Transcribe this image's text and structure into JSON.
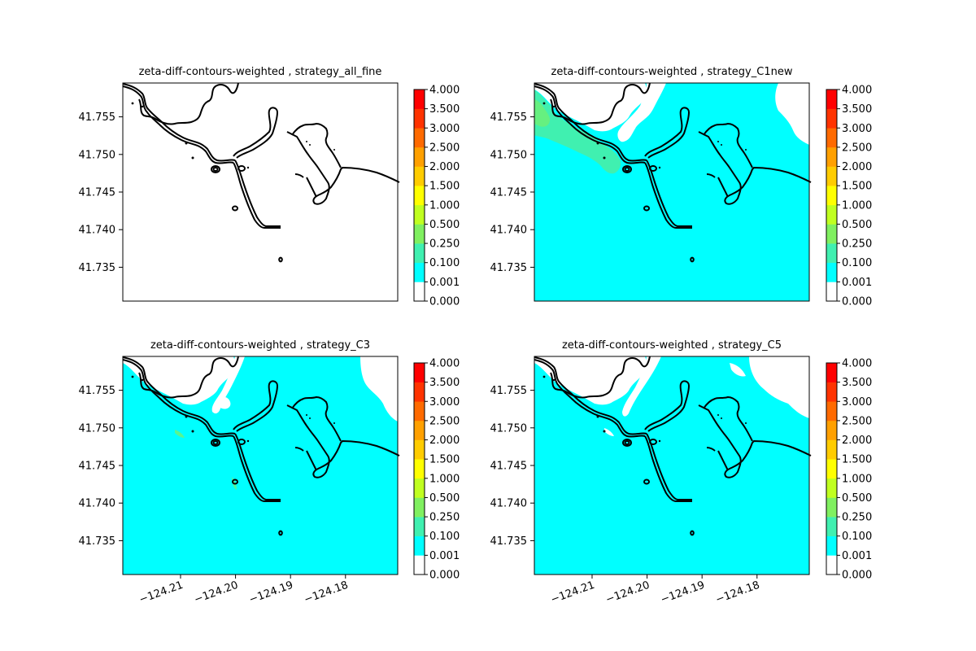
{
  "figure": {
    "colorbar": {
      "levels": [
        0.0,
        0.001,
        0.1,
        0.25,
        0.5,
        1.0,
        1.5,
        2.0,
        2.5,
        3.0,
        3.5,
        4.0
      ],
      "level_labels": [
        "0.000",
        "0.001",
        "0.100",
        "0.250",
        "0.500",
        "1.000",
        "1.500",
        "2.000",
        "2.500",
        "3.000",
        "3.500",
        "4.000"
      ],
      "colors": [
        "#ffffff",
        "#00ffff",
        "#40f0b0",
        "#80f060",
        "#c0ff20",
        "#ffff00",
        "#ffcc00",
        "#ffa000",
        "#ff6a00",
        "#ff3300",
        "#ff0000"
      ]
    },
    "coastline_color": "#000000"
  },
  "chart_data": [
    {
      "type": "heatmap",
      "title": "zeta-diff-contours-weighted , strategy_all_fine",
      "xlabel": "",
      "ylabel": "",
      "xlim": [
        -124.2205,
        -124.1705
      ],
      "ylim": [
        41.7305,
        41.7595
      ],
      "x_ticks": [],
      "x_tick_labels": [],
      "y_ticks": [
        41.735,
        41.74,
        41.745,
        41.75,
        41.755
      ],
      "y_tick_labels": [
        "41.735",
        "41.740",
        "41.745",
        "41.750",
        "41.755"
      ],
      "fill": "none",
      "colorbar_range": [
        0.0,
        4.0
      ]
    },
    {
      "type": "heatmap",
      "title": "zeta-diff-contours-weighted , strategy_C1new",
      "xlabel": "",
      "ylabel": "",
      "xlim": [
        -124.2205,
        -124.1705
      ],
      "ylim": [
        41.7305,
        41.7595
      ],
      "x_ticks": [],
      "x_tick_labels": [],
      "y_ticks": [
        41.735,
        41.74,
        41.745,
        41.75,
        41.755
      ],
      "y_tick_labels": [
        "41.735",
        "41.740",
        "41.745",
        "41.750",
        "41.755"
      ],
      "fill": "mostly 0.001-0.100 with 0.100-0.250 near coast",
      "colorbar_range": [
        0.0,
        4.0
      ]
    },
    {
      "type": "heatmap",
      "title": "zeta-diff-contours-weighted , strategy_C3",
      "xlabel": "",
      "ylabel": "",
      "xlim": [
        -124.2205,
        -124.1705
      ],
      "ylim": [
        41.7305,
        41.7595
      ],
      "x_ticks": [
        -124.21,
        -124.2,
        -124.19,
        -124.18
      ],
      "x_tick_labels": [
        "−124.21",
        "−124.20",
        "−124.19",
        "−124.18"
      ],
      "y_ticks": [
        41.735,
        41.74,
        41.745,
        41.75,
        41.755
      ],
      "y_tick_labels": [
        "41.735",
        "41.740",
        "41.745",
        "41.750",
        "41.755"
      ],
      "fill": "mostly 0.001-0.100",
      "colorbar_range": [
        0.0,
        4.0
      ]
    },
    {
      "type": "heatmap",
      "title": "zeta-diff-contours-weighted , strategy_C5",
      "xlabel": "",
      "ylabel": "",
      "xlim": [
        -124.2205,
        -124.1705
      ],
      "ylim": [
        41.7305,
        41.7595
      ],
      "x_ticks": [
        -124.21,
        -124.2,
        -124.19,
        -124.18
      ],
      "x_tick_labels": [
        "−124.21",
        "−124.20",
        "−124.19",
        "−124.18"
      ],
      "y_ticks": [
        41.735,
        41.74,
        41.745,
        41.75,
        41.755
      ],
      "y_tick_labels": [
        "41.735",
        "41.740",
        "41.745",
        "41.750",
        "41.755"
      ],
      "fill": "mostly 0.001-0.100",
      "colorbar_range": [
        0.0,
        4.0
      ]
    }
  ]
}
